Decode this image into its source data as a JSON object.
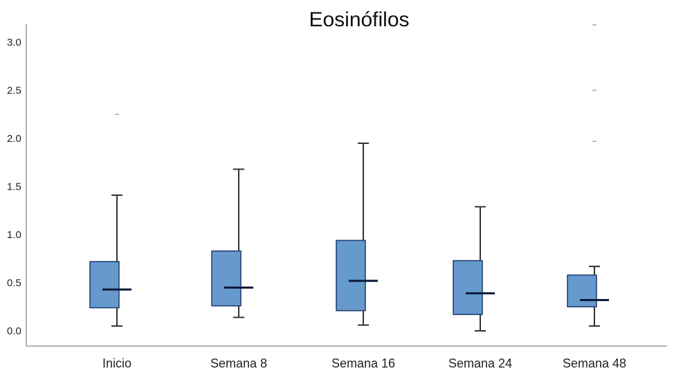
{
  "chart_data": {
    "type": "box",
    "title": "Eosinófilos",
    "xlabel": "",
    "ylabel": "",
    "ylim": [
      -0.05,
      3.2
    ],
    "yticks": [
      "0.0",
      "0.5",
      "1.0",
      "1.5",
      "2.0",
      "2.5",
      "3.0"
    ],
    "grid": false,
    "categories": [
      "Inicio",
      "Semana 8",
      "Semana 16",
      "Semana 24",
      "Semana 48"
    ],
    "boxes": [
      {
        "whisker_low": 0.05,
        "q1": 0.24,
        "median": 0.43,
        "q3": 0.72,
        "whisker_high": 1.41,
        "outliers": [
          2.25
        ]
      },
      {
        "whisker_low": 0.14,
        "q1": 0.26,
        "median": 0.45,
        "q3": 0.83,
        "whisker_high": 1.68,
        "outliers": []
      },
      {
        "whisker_low": 0.06,
        "q1": 0.21,
        "median": 0.52,
        "q3": 0.94,
        "whisker_high": 1.95,
        "outliers": []
      },
      {
        "whisker_low": 0.0,
        "q1": 0.17,
        "median": 0.39,
        "q3": 0.73,
        "whisker_high": 1.29,
        "outliers": []
      },
      {
        "whisker_low": 0.05,
        "q1": 0.25,
        "median": 0.32,
        "q3": 0.58,
        "whisker_high": 0.67,
        "outliers": [
          1.97,
          2.5,
          3.18
        ]
      }
    ],
    "colors": {
      "box_fill": "#6699cc",
      "box_stroke": "#1a3a6b",
      "median": "#0a1a3a",
      "whisker": "#333333",
      "axis": "#999999",
      "outlier": "#aaaaaa"
    }
  }
}
